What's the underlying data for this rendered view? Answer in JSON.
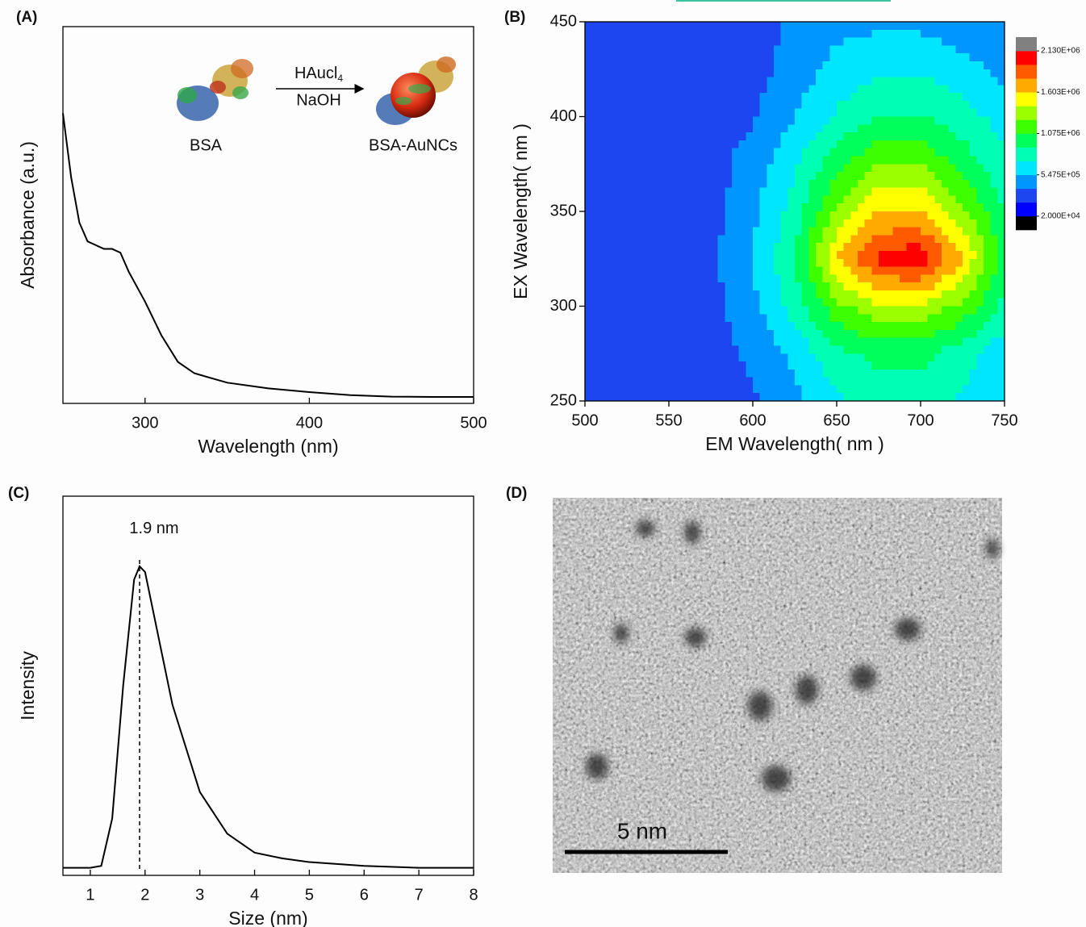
{
  "chart_data": [
    {
      "type": "line",
      "panel_label": "(A)",
      "x_label": "Wavelength (nm)",
      "y_label": "Absorbance (a.u.)",
      "xlim": [
        250,
        500
      ],
      "xticks": [
        300,
        400,
        500
      ],
      "ylim": [
        0,
        1
      ],
      "color": "#000000",
      "x": [
        250,
        255,
        260,
        265,
        270,
        275,
        280,
        285,
        290,
        300,
        310,
        320,
        330,
        350,
        375,
        400,
        425,
        450,
        475,
        500
      ],
      "values": [
        0.77,
        0.6,
        0.48,
        0.43,
        0.42,
        0.41,
        0.41,
        0.4,
        0.35,
        0.27,
        0.18,
        0.11,
        0.08,
        0.055,
        0.04,
        0.03,
        0.022,
        0.018,
        0.017,
        0.017
      ],
      "reaction": {
        "reagent": "HAucl",
        "reagent_subscript": "4",
        "base": "NaOH",
        "reactant": "BSA",
        "product": "BSA-AuNCs"
      }
    },
    {
      "type": "contour",
      "panel_label": "(B)",
      "x_label": "EM Wavelength( nm )",
      "y_label": "EX Wavelength( nm )",
      "xlim": [
        500,
        750
      ],
      "xticks": [
        500,
        550,
        600,
        650,
        700,
        750
      ],
      "ylim": [
        250,
        450
      ],
      "yticks": [
        250,
        300,
        350,
        400,
        450
      ],
      "x": [
        500,
        525,
        550,
        575,
        600,
        625,
        650,
        675,
        700,
        725,
        750
      ],
      "y": [
        450,
        425,
        400,
        375,
        350,
        325,
        300,
        275,
        250
      ],
      "z": [
        [
          300000,
          300000,
          300000,
          300000,
          300000,
          400000,
          500000,
          500000,
          500000,
          450000,
          400000
        ],
        [
          300000,
          300000,
          300000,
          300000,
          300000,
          450000,
          600000,
          700000,
          700000,
          600000,
          500000
        ],
        [
          300000,
          300000,
          300000,
          300000,
          350000,
          550000,
          750000,
          900000,
          900000,
          800000,
          650000
        ],
        [
          300000,
          300000,
          300000,
          300000,
          450000,
          700000,
          1000000,
          1250000,
          1250000,
          1000000,
          750000
        ],
        [
          300000,
          300000,
          300000,
          300000,
          500000,
          800000,
          1300000,
          1600000,
          1600000,
          1300000,
          900000
        ],
        [
          300000,
          300000,
          300000,
          350000,
          550000,
          900000,
          1600000,
          2000000,
          2100000,
          1600000,
          1000000
        ],
        [
          300000,
          300000,
          300000,
          300000,
          500000,
          800000,
          1200000,
          1400000,
          1400000,
          1200000,
          850000
        ],
        [
          300000,
          300000,
          300000,
          300000,
          400000,
          600000,
          850000,
          950000,
          950000,
          800000,
          600000
        ],
        [
          300000,
          300000,
          300000,
          300000,
          350000,
          500000,
          700000,
          800000,
          800000,
          700000,
          550000
        ]
      ],
      "zlim": [
        -156000,
        2306000
      ],
      "colors": [
        "#000000",
        "#0000ff",
        "#1e46f0",
        "#0096ff",
        "#00e6ff",
        "#00ffb4",
        "#00ff5a",
        "#3cff00",
        "#9bff00",
        "#ffff00",
        "#ffaa00",
        "#ff5a00",
        "#ff0000",
        "#808080"
      ],
      "colorbar_ticks": [
        {
          "value": 2130000,
          "label": "2.130E+06"
        },
        {
          "value": 1603000,
          "label": "1.603E+06"
        },
        {
          "value": 1075000,
          "label": "1.075E+06"
        },
        {
          "value": 547500,
          "label": "5.475E+05"
        },
        {
          "value": 20000,
          "label": "2.000E+04"
        }
      ]
    },
    {
      "type": "line",
      "panel_label": "(C)",
      "x_label": "Size (nm)",
      "y_label": "Intensity",
      "xlim": [
        0.5,
        8
      ],
      "xticks": [
        1,
        2,
        3,
        4,
        5,
        6,
        7,
        8
      ],
      "ylim": [
        0,
        1
      ],
      "color": "#000000",
      "x": [
        0.5,
        1,
        1.2,
        1.4,
        1.6,
        1.8,
        1.9,
        2,
        2.2,
        2.5,
        3,
        3.5,
        4,
        4.5,
        5,
        6,
        7,
        8
      ],
      "values": [
        0.02,
        0.02,
        0.025,
        0.15,
        0.5,
        0.78,
        0.815,
        0.8,
        0.66,
        0.45,
        0.22,
        0.11,
        0.06,
        0.045,
        0.035,
        0.025,
        0.02,
        0.02
      ],
      "peak": {
        "x": 1.9,
        "label": "1.9 nm"
      }
    }
  ],
  "image": {
    "panel_label": "(D)",
    "scale_bar": "5 nm"
  }
}
